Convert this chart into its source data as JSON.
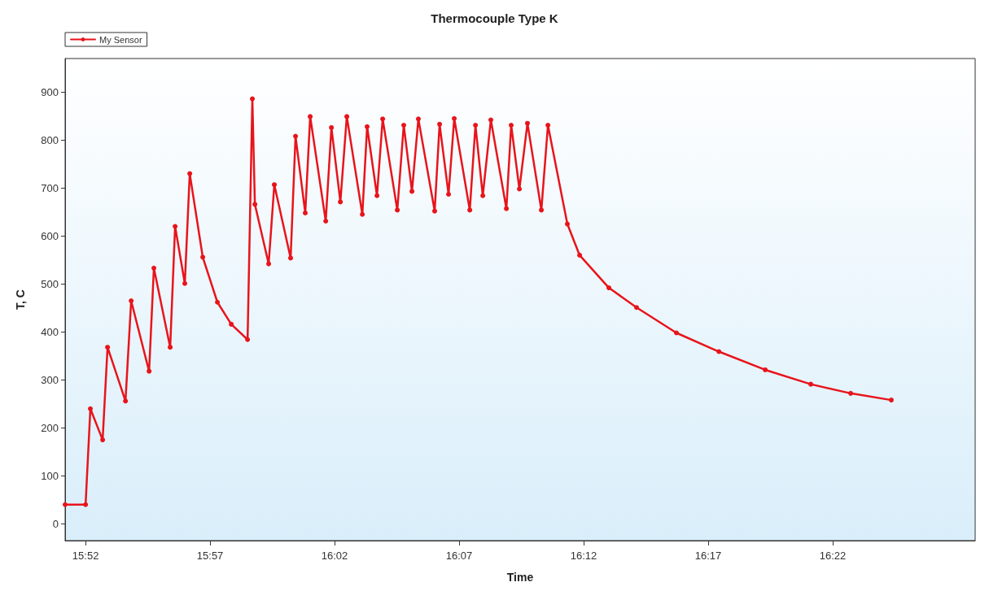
{
  "chart_data": {
    "type": "line",
    "title": "Thermocouple Type K",
    "xlabel": "Time",
    "ylabel": "T, C",
    "xlim": [
      15.853,
      16.462
    ],
    "ylim": [
      -35,
      970
    ],
    "xticks": [
      {
        "value": 15.866667,
        "label": "15:52"
      },
      {
        "value": 15.95,
        "label": "15:57"
      },
      {
        "value": 16.033333,
        "label": "16:02"
      },
      {
        "value": 16.116667,
        "label": "16:07"
      },
      {
        "value": 16.2,
        "label": "16:12"
      },
      {
        "value": 16.283333,
        "label": "16:17"
      },
      {
        "value": 16.366667,
        "label": "16:22"
      }
    ],
    "yticks": [
      0,
      100,
      200,
      300,
      400,
      500,
      600,
      700,
      800,
      900
    ],
    "grid": false,
    "legend": "top left",
    "marker": "circle",
    "line_style": "solid",
    "series": [
      {
        "name": "My Sensor",
        "color": "#e8141b",
        "x": [
          15.853,
          15.8667,
          15.8699,
          15.8781,
          15.8814,
          15.8934,
          15.8972,
          15.9092,
          15.9124,
          15.9233,
          15.9266,
          15.9331,
          15.9364,
          15.9451,
          15.9549,
          15.9642,
          15.9751,
          15.9783,
          15.98,
          15.9892,
          15.993,
          16.0039,
          16.0072,
          16.0137,
          16.017,
          16.0274,
          16.0312,
          16.0372,
          16.0415,
          16.0519,
          16.0551,
          16.0617,
          16.0655,
          16.0753,
          16.0796,
          16.0851,
          16.0894,
          16.1003,
          16.1036,
          16.1096,
          16.1134,
          16.1238,
          16.1276,
          16.1325,
          16.1379,
          16.1483,
          16.1515,
          16.157,
          16.1624,
          16.1717,
          16.1761,
          16.1891,
          16.1973,
          16.2169,
          16.2354,
          16.2621,
          16.2905,
          16.3215,
          16.352,
          16.3787,
          16.4059
        ],
        "values": [
          40,
          40,
          240,
          175,
          368,
          256,
          465,
          318,
          533,
          368,
          620,
          501,
          730,
          556,
          462,
          416,
          384,
          886,
          666,
          542,
          707,
          554,
          808,
          648,
          849,
          631,
          826,
          671,
          849,
          645,
          828,
          684,
          844,
          654,
          831,
          693,
          844,
          652,
          833,
          687,
          845,
          654,
          831,
          684,
          842,
          657,
          831,
          698,
          835,
          654,
          831,
          625,
          560,
          492,
          451,
          398,
          359,
          321,
          291,
          272,
          258
        ]
      }
    ]
  }
}
